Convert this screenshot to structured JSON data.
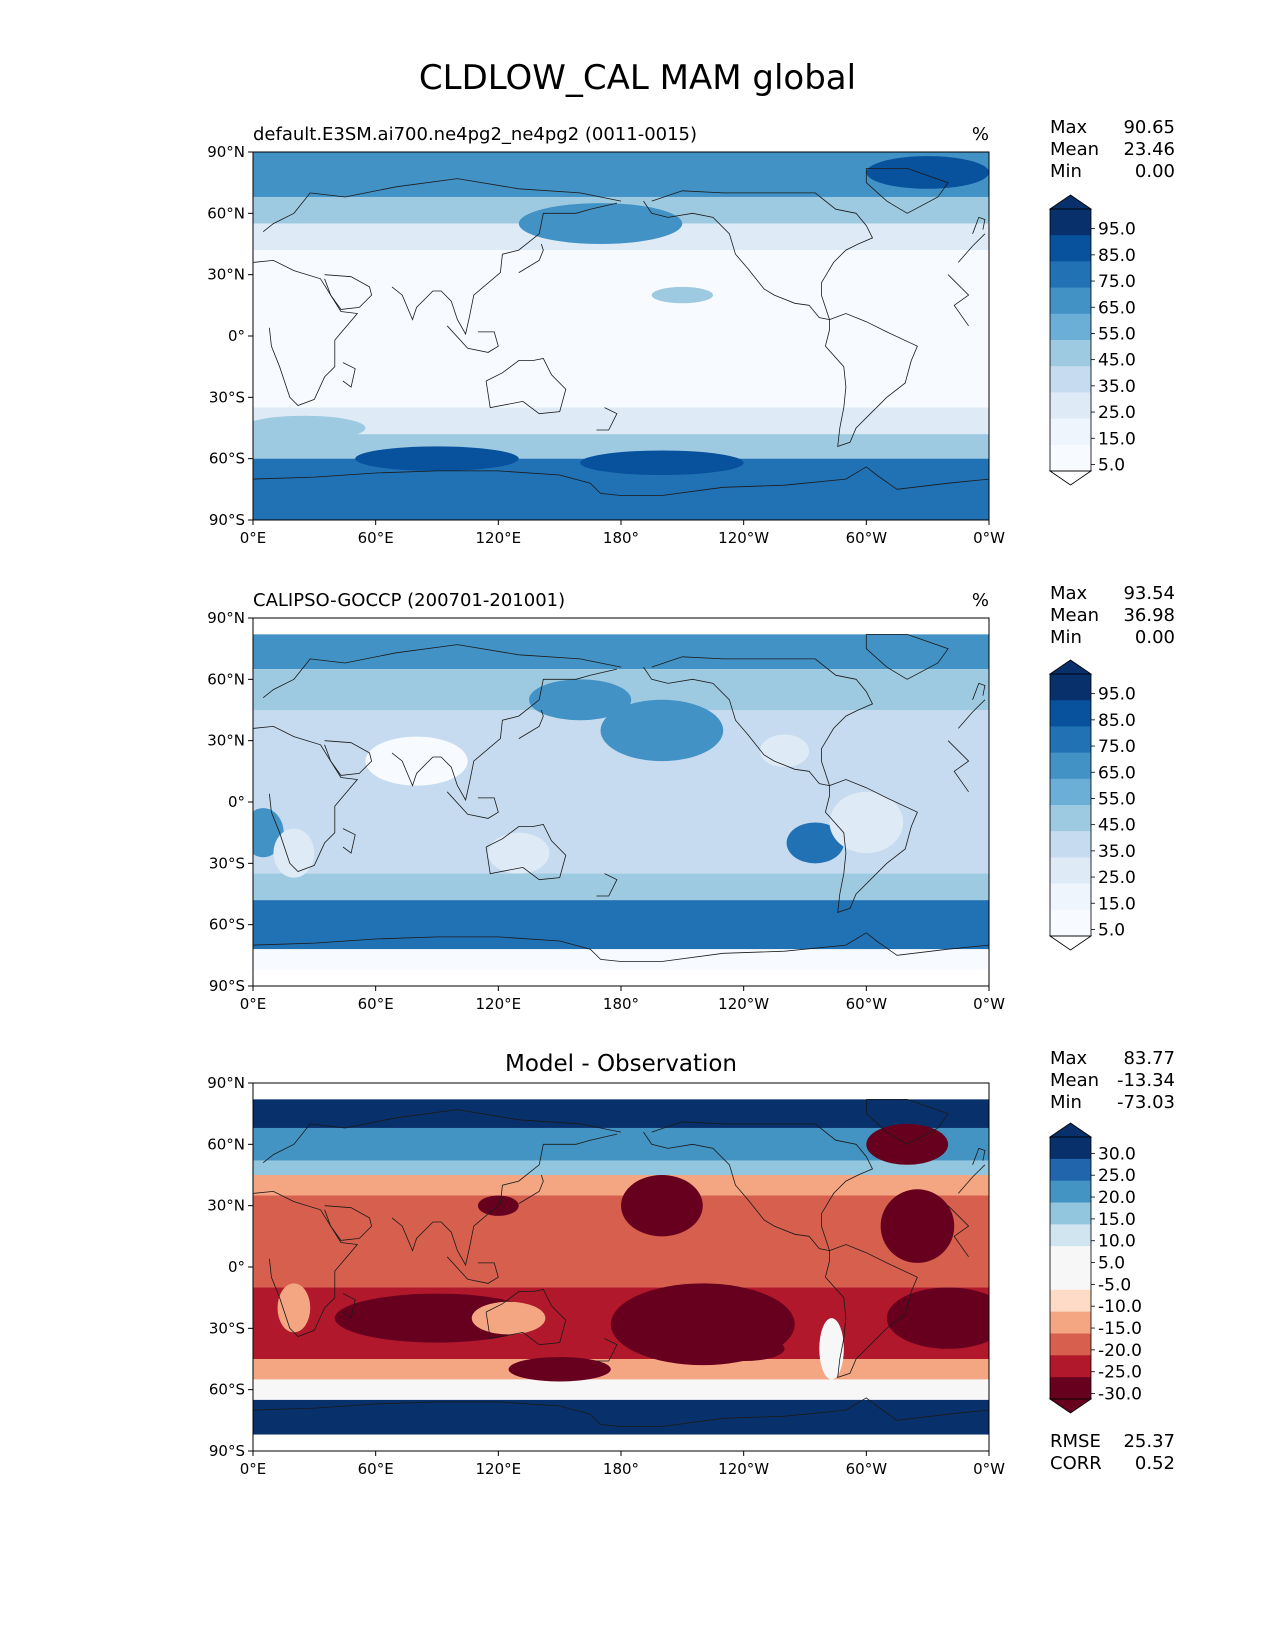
{
  "title": "CLDLOW_CAL MAM global",
  "panels": [
    {
      "id": "model",
      "title_left": "default.E3SM.ai700.ne4pg2_ne4pg2 (0011-0015)",
      "title_center": "",
      "units": "%",
      "stats": [
        {
          "label": "Max",
          "value": "90.65"
        },
        {
          "label": "Mean",
          "value": "23.46"
        },
        {
          "label": "Min",
          "value": "0.00"
        }
      ],
      "colorbar": {
        "levels": [
          "95.0",
          "85.0",
          "75.0",
          "65.0",
          "55.0",
          "45.0",
          "35.0",
          "25.0",
          "15.0",
          "5.0"
        ],
        "colors": [
          "#08306b",
          "#08519c",
          "#2171b5",
          "#4292c6",
          "#6baed6",
          "#9ecae1",
          "#c6dbef",
          "#deebf7",
          "#eef5fc",
          "#f7fbff"
        ],
        "over": "#08306b",
        "under": "#ffffff"
      }
    },
    {
      "id": "obs",
      "title_left": "CALIPSO-GOCCP (200701-201001)",
      "title_center": "",
      "units": "%",
      "stats": [
        {
          "label": "Max",
          "value": "93.54"
        },
        {
          "label": "Mean",
          "value": "36.98"
        },
        {
          "label": "Min",
          "value": "0.00"
        }
      ],
      "colorbar": {
        "levels": [
          "95.0",
          "85.0",
          "75.0",
          "65.0",
          "55.0",
          "45.0",
          "35.0",
          "25.0",
          "15.0",
          "5.0"
        ],
        "colors": [
          "#08306b",
          "#08519c",
          "#2171b5",
          "#4292c6",
          "#6baed6",
          "#9ecae1",
          "#c6dbef",
          "#deebf7",
          "#eef5fc",
          "#f7fbff"
        ],
        "over": "#08306b",
        "under": "#ffffff"
      }
    },
    {
      "id": "diff",
      "title_left": "",
      "title_center": "Model - Observation",
      "units": "",
      "stats": [
        {
          "label": "Max",
          "value": "83.77"
        },
        {
          "label": "Mean",
          "value": "-13.34"
        },
        {
          "label": "Min",
          "value": "-73.03"
        }
      ],
      "colorbar": {
        "levels": [
          "30.0",
          "25.0",
          "20.0",
          "15.0",
          "10.0",
          "5.0",
          "-5.0",
          "-10.0",
          "-15.0",
          "-20.0",
          "-25.0",
          "-30.0"
        ],
        "colors": [
          "#08306b",
          "#2166ac",
          "#4393c3",
          "#92c5de",
          "#d1e5f0",
          "#f7f7f7",
          "#f7f7f7",
          "#fddbc7",
          "#f4a582",
          "#d6604d",
          "#b2182b",
          "#67001f"
        ],
        "over": "#08306b",
        "under": "#67001f"
      },
      "metrics": [
        {
          "label": "RMSE",
          "value": "25.37"
        },
        {
          "label": "CORR",
          "value": "0.52"
        }
      ]
    }
  ],
  "lat_ticks": [
    "90°N",
    "60°N",
    "30°N",
    "0°",
    "30°S",
    "60°S",
    "90°S"
  ],
  "lon_ticks": [
    "0°E",
    "60°E",
    "120°E",
    "180°",
    "120°W",
    "60°W",
    "0°W"
  ],
  "map_colors": {
    "seq_white": "#f7fbff",
    "seq_light": "#deebf7",
    "seq_mid": "#9ecae1",
    "seq_blue": "#4292c6",
    "seq_dark": "#2171b5",
    "seq_navy": "#08519c",
    "div_navy": "#08306b",
    "div_blue": "#4393c3",
    "div_light_blue": "#92c5de",
    "div_white": "#f7f7f7",
    "div_pink": "#f4a582",
    "div_red": "#d6604d",
    "div_crimson": "#b2182b",
    "div_maroon": "#67001f",
    "coast": "#1a1a1a"
  }
}
